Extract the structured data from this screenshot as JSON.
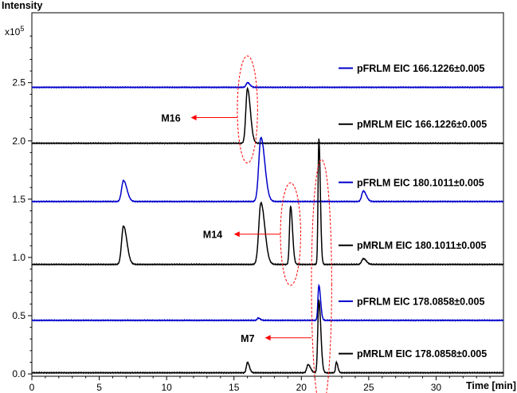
{
  "chart_data": {
    "type": "line",
    "title": "",
    "ylabel": "Intensity",
    "yunit": "x10",
    "yunit_exp": "5",
    "xlabel": "Time [min]",
    "xlim": [
      0,
      35
    ],
    "ylim": [
      -0.02,
      3.1
    ],
    "xticks": [
      0,
      5,
      10,
      15,
      20,
      25,
      30
    ],
    "yticks": [
      0.0,
      0.5,
      1.0,
      1.5,
      2.0,
      2.5
    ],
    "ytick_labels": [
      "0.0",
      "0.5",
      "1.0",
      "1.5",
      "2.0",
      "2.5"
    ],
    "legend_position": "right",
    "series": [
      {
        "name": "pFRLM EIC 166.1226±0.005",
        "color": "#0000cc",
        "baseline": 2.46,
        "peaks": [
          [
            16.0,
            0.04,
            0.1
          ]
        ]
      },
      {
        "name": "pMRLM EIC 166.1226±0.005",
        "color": "#000000",
        "baseline": 1.98,
        "peaks": [
          [
            16.0,
            0.47,
            0.12
          ]
        ]
      },
      {
        "name": "pFRLM EIC 180.1011±0.005",
        "color": "#0000cc",
        "baseline": 1.48,
        "peaks": [
          [
            6.8,
            0.18,
            0.14
          ],
          [
            17.0,
            0.55,
            0.16
          ],
          [
            24.6,
            0.09,
            0.12
          ]
        ]
      },
      {
        "name": "pMRLM EIC 180.1011±0.005",
        "color": "#000000",
        "baseline": 0.94,
        "peaks": [
          [
            6.8,
            0.33,
            0.14
          ],
          [
            17.0,
            0.53,
            0.16
          ],
          [
            19.2,
            0.5,
            0.08
          ],
          [
            21.3,
            1.08,
            0.06
          ],
          [
            24.6,
            0.05,
            0.12
          ]
        ]
      },
      {
        "name": "pFRLM EIC 178.0858±0.005",
        "color": "#0000cc",
        "baseline": 0.46,
        "peaks": [
          [
            21.3,
            0.3,
            0.07
          ],
          [
            16.8,
            0.02,
            0.08
          ]
        ]
      },
      {
        "name": "pMRLM EIC 178.0858±0.005",
        "color": "#000000",
        "baseline": 0.01,
        "peaks": [
          [
            16.0,
            0.09,
            0.08
          ],
          [
            20.5,
            0.07,
            0.1
          ],
          [
            21.3,
            0.62,
            0.08
          ],
          [
            22.6,
            0.09,
            0.06
          ]
        ]
      }
    ],
    "annotations": [
      {
        "text": "M16",
        "x": 16.0,
        "y": 2.2
      },
      {
        "text": "M14",
        "x": 19.2,
        "y": 1.2
      },
      {
        "text": "M7",
        "x": 21.5,
        "y": 0.3
      }
    ]
  }
}
